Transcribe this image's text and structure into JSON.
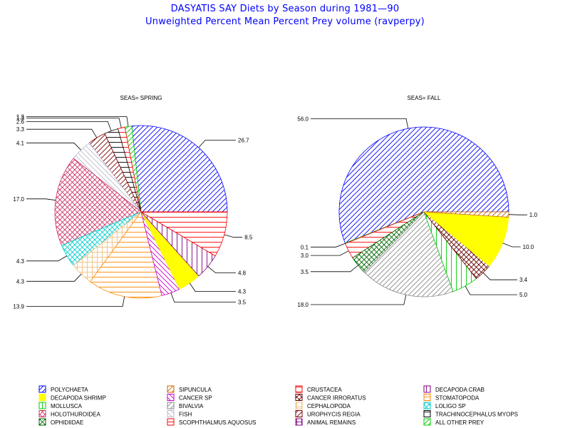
{
  "title": "DASYATIS SAY Diets by Season during 1981—90",
  "subtitle": "Unweighted Percent Mean Percent Prey  volume (ravperpy)",
  "chart_data": [
    {
      "type": "pie",
      "title": "SEAS= SPRING",
      "slices": [
        {
          "category": "POLYCHAETA",
          "value": 26.7,
          "label": "26.7"
        },
        {
          "category": "ALL OTHER PREY",
          "value": 1.3,
          "label": "1.3"
        },
        {
          "category": "SCOPHTHALMUS AQUOSUS",
          "value": 1.3,
          "label": "1.3"
        },
        {
          "category": "TRACHINOCEPHALUS MYOPS",
          "value": 2.6,
          "label": "2.6"
        },
        {
          "category": "UROPHYCIS REGIA",
          "value": 3.3,
          "label": "3.3"
        },
        {
          "category": "FISH",
          "value": 4.1,
          "label": "4.1"
        },
        {
          "category": "HOLOTHUROIDEA",
          "value": 17.0,
          "label": "17.0"
        },
        {
          "category": "LOLIGO SP",
          "value": 4.3,
          "label": "4.3"
        },
        {
          "category": "CEPHALOPODA",
          "value": 4.3,
          "label": "4.3"
        },
        {
          "category": "STOMATOPODA",
          "value": 13.9,
          "label": "13.9"
        },
        {
          "category": "CANCER SP",
          "value": 3.5,
          "label": "3.5"
        },
        {
          "category": "DECAPODA SHRIMP",
          "value": 4.3,
          "label": "4.3"
        },
        {
          "category": "DECAPODA CRAB",
          "value": 4.8,
          "label": "4.8"
        },
        {
          "category": "CRUSTACEA",
          "value": 8.5,
          "label": "8.5"
        }
      ]
    },
    {
      "type": "pie",
      "title": "SEAS= FALL",
      "slices": [
        {
          "category": "POLYCHAETA",
          "value": 56.0,
          "label": "56.0"
        },
        {
          "category": "ALL OTHER PREY",
          "value": 0.1,
          "label": "0.1"
        },
        {
          "category": "SCOPHTHALMUS AQUOSUS",
          "value": 3.0,
          "label": "3.0"
        },
        {
          "category": "OPHIDIIDAE",
          "value": 3.5,
          "label": "3.5"
        },
        {
          "category": "BIVALVIA",
          "value": 18.0,
          "label": "18.0"
        },
        {
          "category": "MOLLUSCA",
          "value": 5.0,
          "label": "5.0"
        },
        {
          "category": "CANCER IRRORATUS",
          "value": 3.4,
          "label": "3.4"
        },
        {
          "category": "DECAPODA SHRIMP",
          "value": 10.0,
          "label": "10.0"
        },
        {
          "category": "SIPUNCULA",
          "value": 1.0,
          "label": "1.0"
        }
      ]
    }
  ],
  "legend": [
    {
      "name": "POLYCHAETA",
      "color": "#0000ff",
      "pattern": "diag-up"
    },
    {
      "name": "SIPUNCULA",
      "color": "#cc6600",
      "pattern": "diag-up"
    },
    {
      "name": "CRUSTACEA",
      "color": "#ff0000",
      "pattern": "horiz"
    },
    {
      "name": "DECAPODA CRAB",
      "color": "#800080",
      "pattern": "vert"
    },
    {
      "name": "DECAPODA SHRIMP",
      "color": "#ffff00",
      "pattern": "solid"
    },
    {
      "name": "CANCER SP",
      "color": "#cc00cc",
      "pattern": "diag-down"
    },
    {
      "name": "CANCER IRRORATUS",
      "color": "#660000",
      "pattern": "xcross"
    },
    {
      "name": "STOMATOPODA",
      "color": "#ff8800",
      "pattern": "horiz"
    },
    {
      "name": "MOLLUSCA",
      "color": "#00cc00",
      "pattern": "vert"
    },
    {
      "name": "BIVALVIA",
      "color": "#888888",
      "pattern": "diag-up"
    },
    {
      "name": "CEPHALOPODA",
      "color": "#f0c080",
      "pattern": "grid"
    },
    {
      "name": "LOLIGO SP",
      "color": "#00cccc",
      "pattern": "xcross"
    },
    {
      "name": "HOLOTHUROIDEA",
      "color": "#cc3366",
      "pattern": "xcross"
    },
    {
      "name": "FISH",
      "color": "#bbbbcc",
      "pattern": "diag-down"
    },
    {
      "name": "UROPHYCIS REGIA",
      "color": "#800000",
      "pattern": "diag-up"
    },
    {
      "name": "TRACHINOCEPHALUS MYOPS",
      "color": "#000000",
      "pattern": "horiz"
    },
    {
      "name": "OPHIDIIDAE",
      "color": "#006600",
      "pattern": "xcross"
    },
    {
      "name": "SCOPHTHALMUS AQUOSUS",
      "color": "#ff0000",
      "pattern": "horiz"
    },
    {
      "name": "ANIMAL REMAINS",
      "color": "#800080",
      "pattern": "grid"
    },
    {
      "name": "ALL OTHER PREY",
      "color": "#00cc00",
      "pattern": "diag-up"
    }
  ]
}
